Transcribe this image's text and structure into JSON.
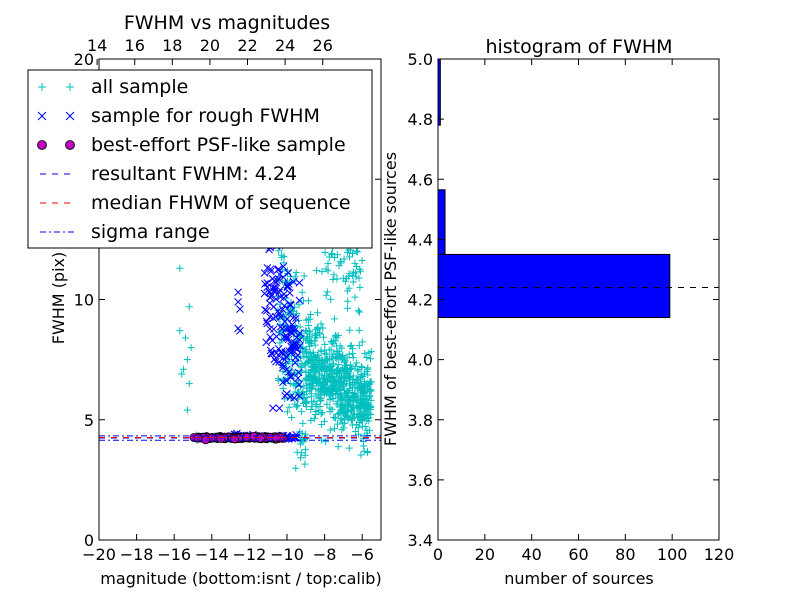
{
  "chart_data": [
    {
      "type": "scatter",
      "title": "FWHM vs magnitudes",
      "xlabel": "magnitude (bottom:isnt / top:calib)",
      "ylabel": "FWHM (pix)",
      "xlim": [
        -20,
        -5
      ],
      "ylim": [
        0,
        20
      ],
      "xticks": [
        "−20",
        "−18",
        "−16",
        "−14",
        "−12",
        "−10",
        "−8",
        "−6"
      ],
      "xtick_values": [
        -20,
        -18,
        -16,
        -14,
        -12,
        -10,
        -8,
        -6
      ],
      "yticks": [
        "0",
        "5",
        "10",
        "15",
        "20"
      ],
      "ytick_values": [
        0,
        5,
        10,
        15,
        20
      ],
      "top_axis": {
        "ticks": [
          "14",
          "16",
          "18",
          "20",
          "22",
          "24",
          "26"
        ],
        "tick_values": [
          14,
          16,
          18,
          20,
          22,
          24,
          26
        ],
        "offset_from_bottom": 34.1
      },
      "legend": {
        "placement": "upper-left",
        "entries": [
          "all sample",
          "sample for rough FWHM",
          "best-effort PSF-like sample",
          "resultant FWHM: 4.24",
          "median FHWM of sequence",
          "sigma range"
        ]
      },
      "series": [
        {
          "name": "all sample",
          "marker": "plus",
          "color": "#00bfbf",
          "clusters": [
            {
              "x_range": [
                -15.0,
                -10.2
              ],
              "y_center": 4.25,
              "y_spread": 0.08,
              "count": 220
            },
            {
              "x_range": [
                -10.5,
                -9.0
              ],
              "y_center": 8.0,
              "y_spread": 5.5,
              "count": 180
            },
            {
              "x_range": [
                -9.0,
                -5.5
              ],
              "y_center": 6.5,
              "y_spread": 2.8,
              "count": 650
            },
            {
              "x_range": [
                -8.5,
                -6.0
              ],
              "y_center": 12.5,
              "y_spread": 4.0,
              "count": 120
            }
          ],
          "outliers": [
            [
              -15.7,
              11.3
            ],
            [
              -15.2,
              9.7
            ],
            [
              -15.7,
              8.7
            ],
            [
              -15.4,
              8.4
            ],
            [
              -15.3,
              7.5
            ],
            [
              -15.5,
              7.1
            ],
            [
              -15.3,
              5.4
            ],
            [
              -15.2,
              6.5
            ],
            [
              -15.6,
              6.9
            ],
            [
              -15.1,
              8.0
            ]
          ]
        },
        {
          "name": "sample for rough FWHM",
          "marker": "x",
          "color": "#0000ff",
          "clusters": [
            {
              "x_range": [
                -11.2,
                -9.3
              ],
              "y_center": 9.0,
              "y_spread": 4.0,
              "count": 140
            },
            {
              "x_range": [
                -13.0,
                -9.5
              ],
              "y_center": 4.3,
              "y_spread": 0.1,
              "count": 60
            }
          ],
          "outliers": [
            [
              -12.6,
              10.3
            ],
            [
              -12.6,
              9.9
            ],
            [
              -12.5,
              9.6
            ],
            [
              -12.6,
              8.8
            ],
            [
              -12.5,
              8.7
            ]
          ]
        },
        {
          "name": "best-effort PSF-like sample",
          "marker": "circle",
          "color": "#bf00bf",
          "clusters": [
            {
              "x_range": [
                -15.0,
                -10.2
              ],
              "y_center": 4.25,
              "y_spread": 0.05,
              "count": 150
            }
          ]
        },
        {
          "name": "resultant FWHM: 4.24",
          "line": "dashed",
          "color": "#0000ff",
          "y": 4.24
        },
        {
          "name": "median FHWM of sequence",
          "line": "dashed",
          "color": "#ff0000",
          "y": 4.26
        },
        {
          "name": "sigma range",
          "line": "dashdot",
          "color": "#0000ff",
          "y": [
            4.15,
            4.33
          ]
        }
      ]
    },
    {
      "type": "bar",
      "orientation": "horizontal",
      "title": "histogram of FWHM",
      "xlabel": "number of sources",
      "ylabel": "FWHM of best-effort PSF-like sources",
      "xlim": [
        0,
        120
      ],
      "ylim": [
        3.4,
        5.0
      ],
      "xticks": [
        "0",
        "20",
        "40",
        "60",
        "80",
        "100",
        "120"
      ],
      "xtick_values": [
        0,
        20,
        40,
        60,
        80,
        100,
        120
      ],
      "yticks": [
        "3.4",
        "3.6",
        "3.8",
        "4.0",
        "4.2",
        "4.4",
        "4.6",
        "4.8",
        "5.0"
      ],
      "ytick_values": [
        3.4,
        3.6,
        3.8,
        4.0,
        4.2,
        4.4,
        4.6,
        4.8,
        5.0
      ],
      "bins": [
        {
          "from": 4.14,
          "to": 4.35,
          "count": 99
        },
        {
          "from": 4.35,
          "to": 4.565,
          "count": 3
        },
        {
          "from": 4.78,
          "to": 5.0,
          "count": 1
        }
      ],
      "bar_color": "#0000ff",
      "reference_line": {
        "y": 4.24,
        "style": "dashed",
        "color": "#000000"
      }
    }
  ]
}
